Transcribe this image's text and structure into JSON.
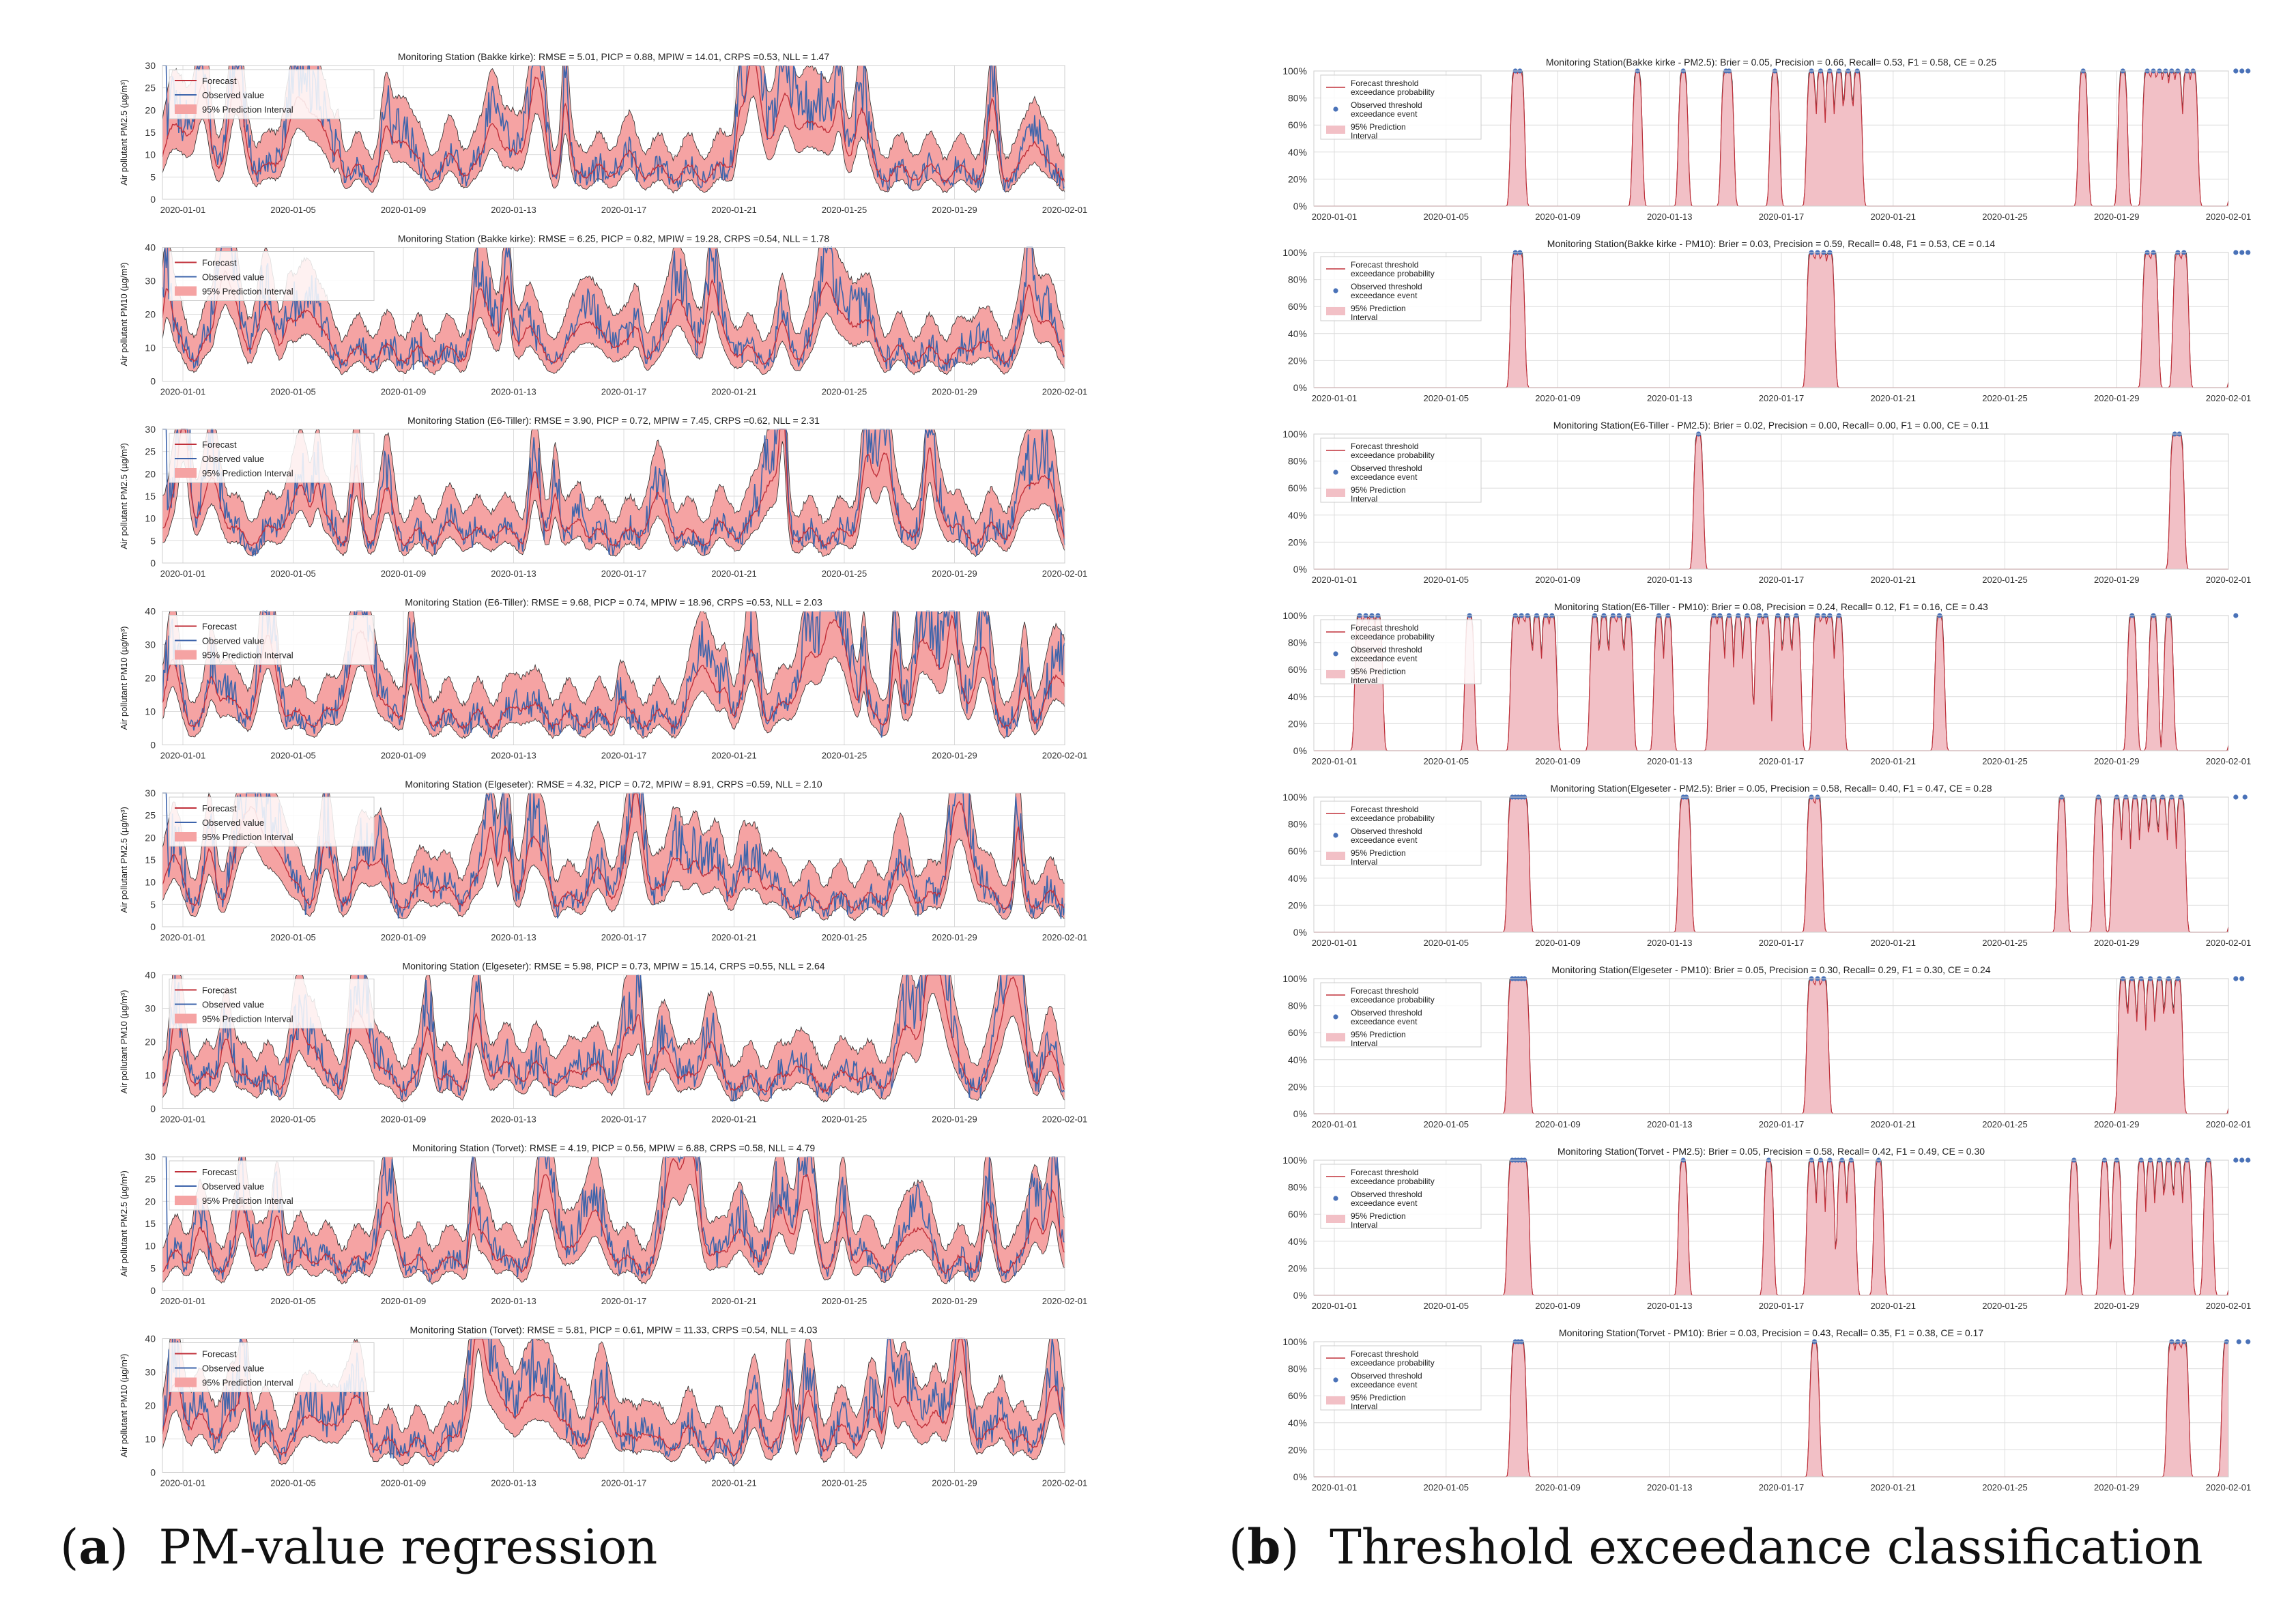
{
  "captions": {
    "a_letter": "a",
    "a_text": "PM-value regression",
    "b_letter": "b",
    "b_text": "Threshold exceedance classification"
  },
  "colors": {
    "forecast": "#c0303a",
    "observed": "#3d64ab",
    "interval": "#f5a3a3",
    "prob_interval": "#f2c0c6",
    "grid": "#dcdcdc",
    "event": "#4a72b8"
  },
  "x_ticks": [
    "2020-01-01",
    "2020-01-05",
    "2020-01-09",
    "2020-01-13",
    "2020-01-17",
    "2020-01-21",
    "2020-01-25",
    "2020-01-29",
    "2020-02-01"
  ],
  "chart_data": [
    {
      "type": "line",
      "panel": "a",
      "title": "Monitoring Station (Bakke kirke): RMSE = 5.01, PICP = 0.88, MPIW = 14.01, CRPS =0.53, NLL = 1.47",
      "ylabel": "Air pollutant PM2.5 (µg/m³)",
      "ylim": [
        0,
        30
      ],
      "yticks": [
        "0",
        "5",
        "10",
        "15",
        "20",
        "25",
        "30"
      ],
      "legend": [
        "Forecast",
        "Observed value",
        "95% Prediction Interval"
      ],
      "pollutant": "PM2.5"
    },
    {
      "type": "line",
      "panel": "a",
      "title": "Monitoring Station (Bakke kirke): RMSE = 6.25, PICP = 0.82, MPIW = 19.28, CRPS =0.54, NLL = 1.78",
      "ylabel": "Air pollutant PM10 (µg/m³)",
      "ylim": [
        0,
        40
      ],
      "yticks": [
        "0",
        "10",
        "20",
        "30",
        "40"
      ],
      "legend": [
        "Forecast",
        "Observed value",
        "95% Prediction Interval"
      ],
      "pollutant": "PM10"
    },
    {
      "type": "line",
      "panel": "a",
      "title": "Monitoring Station (E6-Tiller): RMSE = 3.90, PICP = 0.72, MPIW = 7.45, CRPS =0.62, NLL = 2.31",
      "ylabel": "Air pollutant PM2.5 (µg/m³)",
      "ylim": [
        0,
        30
      ],
      "yticks": [
        "0",
        "5",
        "10",
        "15",
        "20",
        "25",
        "30"
      ],
      "legend": [
        "Forecast",
        "Observed value",
        "95% Prediction Interval"
      ],
      "pollutant": "PM2.5"
    },
    {
      "type": "line",
      "panel": "a",
      "title": "Monitoring Station (E6-Tiller): RMSE = 9.68, PICP = 0.74, MPIW = 18.96, CRPS =0.53, NLL = 2.03",
      "ylabel": "Air pollutant PM10 (µg/m³)",
      "ylim": [
        0,
        40
      ],
      "yticks": [
        "0",
        "10",
        "20",
        "30",
        "40"
      ],
      "legend": [
        "Forecast",
        "Observed value",
        "95% Prediction Interval"
      ],
      "pollutant": "PM10"
    },
    {
      "type": "line",
      "panel": "a",
      "title": "Monitoring Station (Elgeseter): RMSE = 4.32, PICP = 0.72, MPIW = 8.91, CRPS =0.59, NLL = 2.10",
      "ylabel": "Air pollutant PM2.5 (µg/m³)",
      "ylim": [
        0,
        30
      ],
      "yticks": [
        "0",
        "5",
        "10",
        "15",
        "20",
        "25",
        "30"
      ],
      "legend": [
        "Forecast",
        "Observed value",
        "95% Prediction Interval"
      ],
      "pollutant": "PM2.5"
    },
    {
      "type": "line",
      "panel": "a",
      "title": "Monitoring Station (Elgeseter): RMSE = 5.98, PICP = 0.73, MPIW = 15.14, CRPS =0.55, NLL = 2.64",
      "ylabel": "Air pollutant PM10 (µg/m³)",
      "ylim": [
        0,
        40
      ],
      "yticks": [
        "0",
        "10",
        "20",
        "30",
        "40"
      ],
      "legend": [
        "Forecast",
        "Observed value",
        "95% Prediction Interval"
      ],
      "pollutant": "PM10"
    },
    {
      "type": "line",
      "panel": "a",
      "title": "Monitoring Station (Torvet): RMSE = 4.19, PICP = 0.56, MPIW = 6.88, CRPS =0.58, NLL = 4.79",
      "ylabel": "Air pollutant PM2.5 (µg/m³)",
      "ylim": [
        0,
        30
      ],
      "yticks": [
        "0",
        "5",
        "10",
        "15",
        "20",
        "25",
        "30"
      ],
      "legend": [
        "Forecast",
        "Observed value",
        "95% Prediction Interval"
      ],
      "pollutant": "PM2.5"
    },
    {
      "type": "line",
      "panel": "a",
      "title": "Monitoring Station (Torvet): RMSE = 5.81, PICP = 0.61, MPIW = 11.33, CRPS =0.54, NLL = 4.03",
      "ylabel": "Air pollutant PM10 (µg/m³)",
      "ylim": [
        0,
        40
      ],
      "yticks": [
        "0",
        "10",
        "20",
        "30",
        "40"
      ],
      "legend": [
        "Forecast",
        "Observed value",
        "95% Prediction Interval"
      ],
      "pollutant": "PM10"
    },
    {
      "type": "line",
      "panel": "b",
      "title": "Monitoring Station(Bakke kirke - PM2.5): Brier = 0.05, Precision = 0.66, Recall= 0.53, F1 = 0.58, CE = 0.25",
      "ylim": [
        0,
        100
      ],
      "yticks": [
        "0%",
        "20%",
        "40%",
        "60%",
        "80%",
        "100%"
      ],
      "legend": [
        "Forecast threshold exceedance probability",
        "Observed threshold exceedance event",
        "95% Prediction Interval"
      ],
      "event_days": [
        6.6,
        6.75,
        10.6,
        12.1,
        13.5,
        13.6,
        15.1,
        16.3,
        16.6,
        16.9,
        17.2,
        17.5,
        17.8,
        25.2,
        26.5,
        27.3,
        27.5,
        27.7,
        27.9,
        28.1,
        28.3,
        28.6,
        28.8,
        30.2,
        30.4,
        30.6
      ]
    },
    {
      "type": "line",
      "panel": "b",
      "title": "Monitoring Station(Bakke kirke - PM10): Brier = 0.03, Precision = 0.59, Recall= 0.48, F1 = 0.53, CE = 0.14",
      "ylim": [
        0,
        100
      ],
      "yticks": [
        "0%",
        "20%",
        "40%",
        "60%",
        "80%",
        "100%"
      ],
      "legend": [
        "Forecast threshold exceedance probability",
        "Observed threshold exceedance event",
        "95% Prediction Interval"
      ],
      "event_days": [
        6.6,
        6.75,
        16.3,
        16.5,
        16.7,
        16.9,
        27.3,
        27.5,
        28.3,
        28.5,
        30.2,
        30.4,
        30.6
      ]
    },
    {
      "type": "line",
      "panel": "b",
      "title": "Monitoring Station(E6-Tiller - PM2.5): Brier = 0.02, Precision = 0.00, Recall= 0.00, F1 = 0.00, CE = 0.11",
      "ylim": [
        0,
        100
      ],
      "yticks": [
        "0%",
        "20%",
        "40%",
        "60%",
        "80%",
        "100%"
      ],
      "legend": [
        "Forecast threshold exceedance probability",
        "Observed threshold exceedance event",
        "95% Prediction Interval"
      ],
      "event_days": [
        12.6,
        28.2,
        28.35
      ]
    },
    {
      "type": "line",
      "panel": "b",
      "title": "Monitoring Station(E6-Tiller - PM10): Brier = 0.08, Precision = 0.24, Recall= 0.12, F1 = 0.16, CE = 0.43",
      "ylim": [
        0,
        100
      ],
      "yticks": [
        "0%",
        "20%",
        "40%",
        "60%",
        "80%",
        "100%"
      ],
      "legend": [
        "Forecast threshold exceedance probability",
        "Observed threshold exceedance event",
        "95% Prediction Interval"
      ],
      "event_days": [
        1.5,
        1.7,
        1.9,
        2.1,
        5.1,
        6.6,
        6.8,
        7.0,
        7.3,
        7.6,
        7.8,
        9.2,
        9.5,
        9.8,
        10.0,
        10.3,
        11.3,
        11.6,
        13.1,
        13.3,
        13.6,
        13.9,
        14.2,
        14.6,
        14.8,
        15.2,
        15.5,
        15.8,
        16.5,
        16.7,
        16.9,
        17.2,
        20.5,
        26.8,
        27.5,
        28.0,
        30.2
      ]
    },
    {
      "type": "line",
      "panel": "b",
      "title": "Monitoring Station(Elgeseter - PM2.5): Brier = 0.05, Precision = 0.58, Recall= 0.40, F1 = 0.47, CE = 0.28",
      "ylim": [
        0,
        100
      ],
      "yticks": [
        "0%",
        "20%",
        "40%",
        "60%",
        "80%",
        "100%"
      ],
      "legend": [
        "Forecast threshold exceedance probability",
        "Observed threshold exceedance event",
        "95% Prediction Interval"
      ],
      "event_days": [
        6.5,
        6.6,
        6.7,
        6.8,
        6.9,
        12.1,
        12.2,
        16.3,
        16.5,
        24.5,
        25.7,
        26.3,
        26.6,
        26.9,
        27.2,
        27.5,
        27.8,
        28.1,
        28.4,
        30.2,
        30.5
      ]
    },
    {
      "type": "line",
      "panel": "b",
      "title": "Monitoring Station(Elgeseter - PM10): Brier = 0.05, Precision = 0.30, Recall= 0.29, F1 = 0.30, CE = 0.24",
      "ylim": [
        0,
        100
      ],
      "yticks": [
        "0%",
        "20%",
        "40%",
        "60%",
        "80%",
        "100%"
      ],
      "legend": [
        "Forecast threshold exceedance probability",
        "Observed threshold exceedance event",
        "95% Prediction Interval"
      ],
      "event_days": [
        6.5,
        6.6,
        6.7,
        6.8,
        6.9,
        16.3,
        16.5,
        16.7,
        26.5,
        26.8,
        27.1,
        27.4,
        27.7,
        28.0,
        28.3,
        30.2,
        30.4
      ]
    },
    {
      "type": "line",
      "panel": "b",
      "title": "Monitoring Station(Torvet - PM2.5): Brier = 0.05, Precision = 0.58, Recall= 0.42, F1 = 0.49, CE = 0.30",
      "ylim": [
        0,
        100
      ],
      "yticks": [
        "0%",
        "20%",
        "40%",
        "60%",
        "80%",
        "100%"
      ],
      "legend": [
        "Forecast threshold exceedance probability",
        "Observed threshold exceedance event",
        "95% Prediction Interval"
      ],
      "event_days": [
        6.5,
        6.6,
        6.7,
        6.8,
        6.9,
        12.1,
        14.9,
        16.3,
        16.6,
        16.9,
        17.3,
        17.6,
        18.5,
        24.9,
        25.9,
        26.3,
        27.1,
        27.4,
        27.7,
        28.0,
        28.3,
        28.6,
        29.3,
        30.2,
        30.4,
        30.6
      ]
    },
    {
      "type": "line",
      "panel": "b",
      "title": "Monitoring Station(Torvet - PM10): Brier = 0.03, Precision = 0.43, Recall= 0.35, F1 = 0.38, CE = 0.17",
      "ylim": [
        0,
        100
      ],
      "yticks": [
        "0%",
        "20%",
        "40%",
        "60%",
        "80%",
        "100%"
      ],
      "legend": [
        "Forecast threshold exceedance probability",
        "Observed threshold exceedance event",
        "95% Prediction Interval"
      ],
      "event_days": [
        6.6,
        6.7,
        6.8,
        16.4,
        28.1,
        28.3,
        28.5,
        29.9,
        30.3,
        30.6
      ]
    }
  ]
}
